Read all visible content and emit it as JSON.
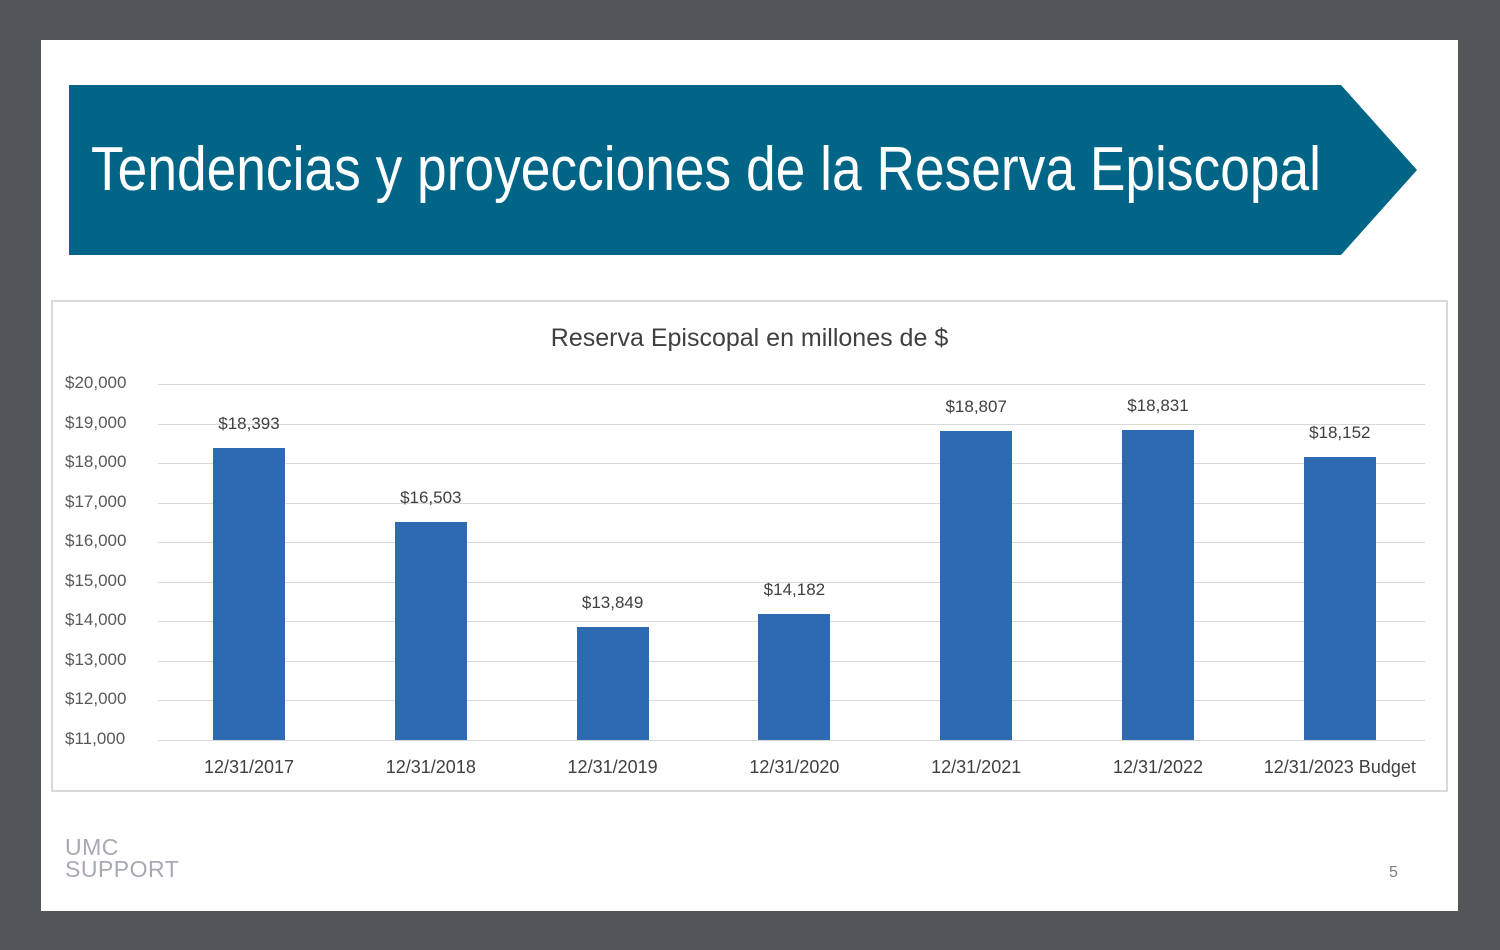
{
  "slide": {
    "title": "Tendencias y proyecciones de la Reserva Episcopal",
    "banner_color": "#006586",
    "page_number": "5",
    "logo": {
      "line1": "UMC",
      "line2": "SUPPORT"
    }
  },
  "chart_data": {
    "type": "bar",
    "title": "Reserva Episcopal en millones de $",
    "categories": [
      "12/31/2017",
      "12/31/2018",
      "12/31/2019",
      "12/31/2020",
      "12/31/2021",
      "12/31/2022",
      "12/31/2023 Budget"
    ],
    "values": [
      18393,
      16503,
      13849,
      14182,
      18807,
      18831,
      18152
    ],
    "value_labels": [
      "$18,393",
      "$16,503",
      "$13,849",
      "$14,182",
      "$18,807",
      "$18,831",
      "$18,152"
    ],
    "xlabel": "",
    "ylabel": "",
    "ylim": [
      11000,
      20000
    ],
    "yticks": [
      "$20,000",
      "$19,000",
      "$18,000",
      "$17,000",
      "$16,000",
      "$15,000",
      "$14,000",
      "$13,000",
      "$12,000",
      "$11,000"
    ],
    "grid": true,
    "legend": "none",
    "bar_color": "#2e6ab1"
  }
}
